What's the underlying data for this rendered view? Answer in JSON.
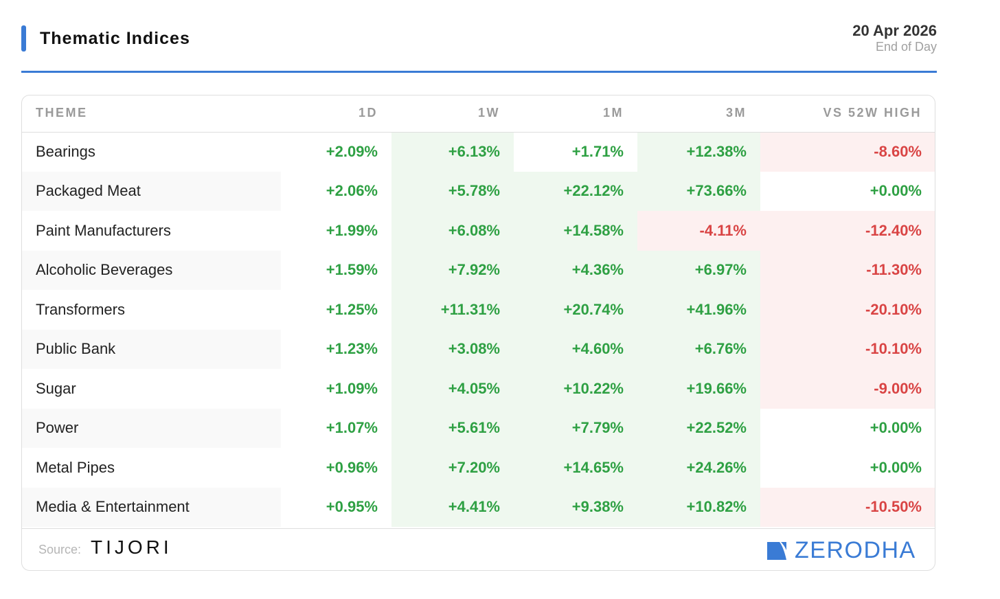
{
  "header": {
    "title": "Thematic Indices",
    "date": "20 Apr 2026",
    "subtitle": "End of Day",
    "accent_color": "#3a7bd5"
  },
  "table": {
    "columns": [
      "THEME",
      "1D",
      "1W",
      "1M",
      "3M",
      "VS 52W HIGH"
    ],
    "rows": [
      {
        "theme": "Bearings",
        "d1": "+2.09%",
        "w1": "+6.13%",
        "m1": "+1.71%",
        "m3": "+12.38%",
        "vs52": "-8.60%"
      },
      {
        "theme": "Packaged Meat",
        "d1": "+2.06%",
        "w1": "+5.78%",
        "m1": "+22.12%",
        "m3": "+73.66%",
        "vs52": "+0.00%"
      },
      {
        "theme": "Paint Manufacturers",
        "d1": "+1.99%",
        "w1": "+6.08%",
        "m1": "+14.58%",
        "m3": "-4.11%",
        "vs52": "-12.40%"
      },
      {
        "theme": "Alcoholic Beverages",
        "d1": "+1.59%",
        "w1": "+7.92%",
        "m1": "+4.36%",
        "m3": "+6.97%",
        "vs52": "-11.30%"
      },
      {
        "theme": "Transformers",
        "d1": "+1.25%",
        "w1": "+11.31%",
        "m1": "+20.74%",
        "m3": "+41.96%",
        "vs52": "-20.10%"
      },
      {
        "theme": "Public Bank",
        "d1": "+1.23%",
        "w1": "+3.08%",
        "m1": "+4.60%",
        "m3": "+6.76%",
        "vs52": "-10.10%"
      },
      {
        "theme": "Sugar",
        "d1": "+1.09%",
        "w1": "+4.05%",
        "m1": "+10.22%",
        "m3": "+19.66%",
        "vs52": "-9.00%"
      },
      {
        "theme": "Power",
        "d1": "+1.07%",
        "w1": "+5.61%",
        "m1": "+7.79%",
        "m3": "+22.52%",
        "vs52": "+0.00%"
      },
      {
        "theme": "Metal Pipes",
        "d1": "+0.96%",
        "w1": "+7.20%",
        "m1": "+14.65%",
        "m3": "+24.26%",
        "vs52": "+0.00%"
      },
      {
        "theme": "Media & Entertainment",
        "d1": "+0.95%",
        "w1": "+4.41%",
        "m1": "+9.38%",
        "m3": "+10.82%",
        "vs52": "-10.50%"
      }
    ],
    "positive_color": "#2ea043",
    "negative_color": "#d94444"
  },
  "footer": {
    "source_label": "Source:",
    "source_brand": "TIJORI",
    "brand": "ZERODHA",
    "brand_icon": "zerodha-logo-icon"
  }
}
